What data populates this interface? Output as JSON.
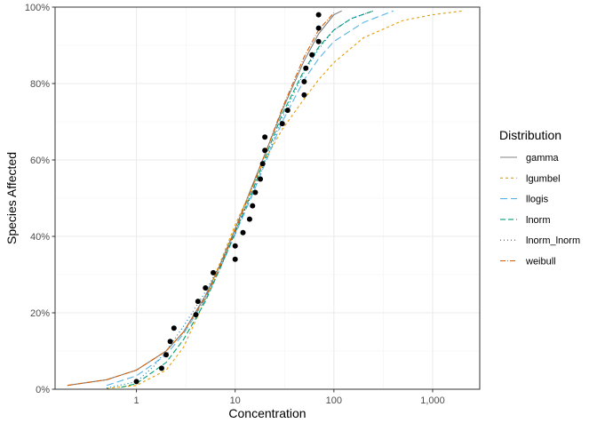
{
  "chart_data": {
    "type": "line",
    "xlabel": "Concentration",
    "ylabel": "Species Affected",
    "x_scale": "log10",
    "xlim": [
      0.15,
      3000
    ],
    "ylim": [
      0,
      1
    ],
    "x_ticks": [
      {
        "value": 1,
        "label": "1"
      },
      {
        "value": 10,
        "label": "10"
      },
      {
        "value": 100,
        "label": "100"
      },
      {
        "value": 1000,
        "label": "1,000"
      }
    ],
    "y_ticks": [
      {
        "value": 0,
        "label": "0%"
      },
      {
        "value": 0.2,
        "label": "20%"
      },
      {
        "value": 0.4,
        "label": "40%"
      },
      {
        "value": 0.6,
        "label": "60%"
      },
      {
        "value": 0.8,
        "label": "80%"
      },
      {
        "value": 1,
        "label": "100%"
      }
    ],
    "grid": true,
    "legend": {
      "title": "Distribution",
      "position": "right"
    },
    "series": [
      {
        "name": "gamma",
        "color": "#808080",
        "dash": "solid",
        "x": [
          0.2,
          0.5,
          1,
          2,
          3,
          5,
          7,
          10,
          15,
          20,
          30,
          50,
          70,
          100,
          120
        ],
        "y": [
          0.01,
          0.025,
          0.05,
          0.1,
          0.15,
          0.245,
          0.325,
          0.42,
          0.535,
          0.615,
          0.73,
          0.86,
          0.93,
          0.98,
          0.99
        ]
      },
      {
        "name": "lgumbel",
        "color": "#E69F00",
        "dash": "3,3",
        "x": [
          0.5,
          1,
          2,
          3,
          5,
          7,
          10,
          15,
          20,
          30,
          50,
          70,
          100,
          200,
          500,
          1000,
          2000
        ],
        "y": [
          0.002,
          0.01,
          0.05,
          0.11,
          0.235,
          0.33,
          0.43,
          0.53,
          0.6,
          0.68,
          0.76,
          0.81,
          0.855,
          0.92,
          0.965,
          0.98,
          0.99
        ]
      },
      {
        "name": "llogis",
        "color": "#56B4E9",
        "dash": "8,4",
        "x": [
          0.5,
          1,
          2,
          3,
          5,
          7,
          10,
          15,
          20,
          30,
          50,
          70,
          100,
          200,
          400
        ],
        "y": [
          0.01,
          0.035,
          0.09,
          0.145,
          0.235,
          0.315,
          0.405,
          0.51,
          0.59,
          0.7,
          0.81,
          0.865,
          0.91,
          0.96,
          0.99
        ]
      },
      {
        "name": "lnorm",
        "color": "#009E73",
        "dash": "6,3",
        "x": [
          0.7,
          1,
          2,
          3,
          5,
          7,
          10,
          15,
          20,
          30,
          50,
          70,
          100,
          150,
          250
        ],
        "y": [
          0.005,
          0.015,
          0.07,
          0.13,
          0.23,
          0.315,
          0.41,
          0.52,
          0.605,
          0.72,
          0.835,
          0.895,
          0.94,
          0.97,
          0.99
        ]
      },
      {
        "name": "lnorm_lnorm",
        "color": "#0072B2",
        "dash": "1,3",
        "x": [
          0.5,
          1,
          1.5,
          2,
          3,
          5,
          7,
          10,
          15,
          20,
          30,
          50,
          70,
          100,
          150,
          250
        ],
        "y": [
          0.003,
          0.02,
          0.06,
          0.1,
          0.165,
          0.255,
          0.325,
          0.41,
          0.515,
          0.595,
          0.71,
          0.83,
          0.89,
          0.94,
          0.97,
          0.99
        ]
      },
      {
        "name": "weibull",
        "color": "#D55E00",
        "dash": "6,2,1,2",
        "x": [
          0.2,
          0.5,
          1,
          2,
          3,
          5,
          7,
          10,
          15,
          20,
          30,
          50,
          70,
          100
        ],
        "y": [
          0.01,
          0.025,
          0.05,
          0.1,
          0.15,
          0.24,
          0.32,
          0.415,
          0.53,
          0.615,
          0.735,
          0.87,
          0.94,
          0.985
        ]
      }
    ],
    "points": {
      "x": [
        1.0,
        1.8,
        2.0,
        2.2,
        2.4,
        4.0,
        4.2,
        5.0,
        6.0,
        10,
        10,
        12,
        14,
        15,
        16,
        18,
        19,
        20,
        20,
        30,
        34,
        50,
        50,
        52,
        60,
        70,
        70,
        70
      ],
      "y": [
        0.02,
        0.055,
        0.09,
        0.125,
        0.16,
        0.195,
        0.23,
        0.265,
        0.305,
        0.34,
        0.375,
        0.41,
        0.445,
        0.48,
        0.515,
        0.55,
        0.59,
        0.625,
        0.66,
        0.695,
        0.73,
        0.77,
        0.805,
        0.84,
        0.875,
        0.91,
        0.945,
        0.98
      ]
    }
  }
}
